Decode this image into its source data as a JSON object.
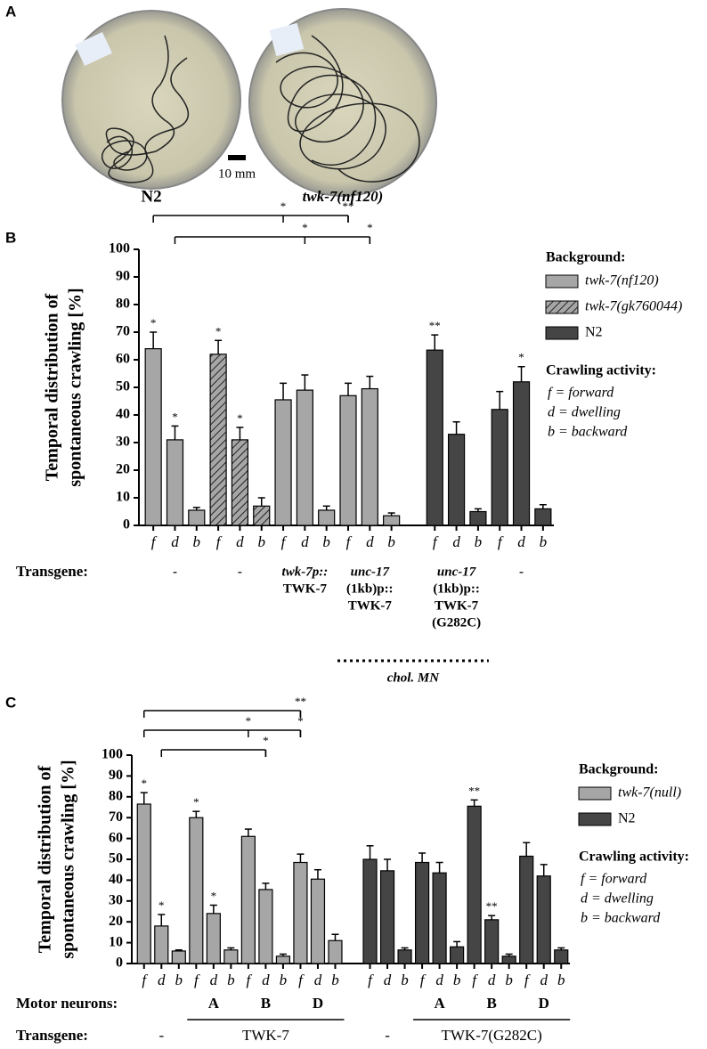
{
  "panel_a": {
    "label": "A",
    "names": [
      "N2",
      "twk-7(nf120)"
    ],
    "scale": "10 mm"
  },
  "chart_data": [
    {
      "type": "bar",
      "panel": "B",
      "ylabel": [
        "Temporal distribution of",
        "spontaneous crawling [%]"
      ],
      "ylim": [
        0,
        100
      ],
      "yticks": [
        0,
        10,
        20,
        30,
        40,
        50,
        60,
        70,
        80,
        90,
        100
      ],
      "categories": [
        "f",
        "d",
        "b",
        "f",
        "d",
        "b",
        "f",
        "d",
        "b",
        "f",
        "d",
        "b",
        null,
        "f",
        "d",
        "b",
        "f",
        "d",
        "b"
      ],
      "legend_title": "Background:",
      "series": [
        {
          "name": "twk-7(nf120)",
          "color": "#a6a6a6",
          "hatch": false,
          "italic": true,
          "values": [
            64,
            31,
            5.5,
            null,
            null,
            null,
            45.5,
            49,
            5.5,
            47,
            49.5,
            3.5,
            null,
            null,
            null,
            null,
            null,
            null,
            null
          ],
          "errors": [
            6,
            5,
            1,
            null,
            null,
            null,
            6,
            5.5,
            1.5,
            4.5,
            4.5,
            1,
            null,
            null,
            null,
            null,
            null,
            null,
            null
          ]
        },
        {
          "name": "twk-7(gk760044)",
          "color": "#a6a6a6",
          "hatch": true,
          "italic": true,
          "values": [
            null,
            null,
            null,
            62,
            31,
            7,
            null,
            null,
            null,
            null,
            null,
            null,
            null,
            null,
            null,
            null,
            null,
            null,
            null
          ],
          "errors": [
            null,
            null,
            null,
            5,
            4.5,
            3,
            null,
            null,
            null,
            null,
            null,
            null,
            null,
            null,
            null,
            null,
            null,
            null,
            null
          ]
        },
        {
          "name": "N2",
          "color": "#454545",
          "hatch": false,
          "italic": false,
          "values": [
            null,
            null,
            null,
            null,
            null,
            null,
            null,
            null,
            null,
            null,
            null,
            null,
            null,
            63.5,
            33,
            5,
            42,
            52,
            6
          ],
          "errors": [
            null,
            null,
            null,
            null,
            null,
            null,
            null,
            null,
            null,
            null,
            null,
            null,
            null,
            5.5,
            4.5,
            1,
            6.5,
            5.5,
            1.5
          ]
        }
      ],
      "stars": [
        "*",
        "*",
        null,
        "*",
        "*",
        null,
        null,
        null,
        null,
        null,
        null,
        null,
        null,
        "**",
        null,
        null,
        null,
        "*",
        null
      ],
      "brackets": [
        {
          "labels": [
            "*",
            "**"
          ]
        },
        {
          "labels": [
            "*",
            "*"
          ]
        }
      ],
      "activity_title": "Crawling activity:",
      "activity_legend": [
        "f = forward",
        "d = dwelling",
        "b = backward"
      ],
      "transgene_title": "Transgene:",
      "transgene": [
        [
          "-"
        ],
        [
          "-"
        ],
        [
          "twk-7p::",
          "TWK-7"
        ],
        [
          "unc-17",
          "(1kb)p::",
          "TWK-7"
        ],
        [
          "unc-17",
          "(1kb)p::",
          "TWK-7",
          "(G282C)"
        ],
        [
          "-"
        ]
      ],
      "group_note": "chol. MN"
    },
    {
      "type": "bar",
      "panel": "C",
      "ylabel": [
        "Temporal distribution of",
        "spontaneous crawling [%]"
      ],
      "ylim": [
        0,
        100
      ],
      "yticks": [
        0,
        10,
        20,
        30,
        40,
        50,
        60,
        70,
        80,
        90,
        100
      ],
      "categories": [
        "f",
        "d",
        "b",
        "f",
        "d",
        "b",
        "f",
        "d",
        "b",
        "f",
        "d",
        "b",
        null,
        "f",
        "d",
        "b",
        "f",
        "d",
        "b",
        "f",
        "d",
        "b",
        "f",
        "d",
        "b"
      ],
      "legend_title": "Background:",
      "series": [
        {
          "name": "twk-7(null)",
          "color": "#a6a6a6",
          "hatch": false,
          "italic": true,
          "values": [
            76.5,
            18,
            6,
            70,
            24,
            6.5,
            61,
            35.5,
            3.5,
            48.5,
            40.5,
            11,
            null,
            null,
            null,
            null,
            null,
            null,
            null,
            null,
            null,
            null,
            null,
            null,
            null
          ],
          "errors": [
            5.5,
            5.5,
            0.5,
            3,
            4,
            1,
            3.5,
            3,
            1,
            4,
            4.5,
            3,
            null,
            null,
            null,
            null,
            null,
            null,
            null,
            null,
            null,
            null,
            null,
            null,
            null
          ]
        },
        {
          "name": "N2",
          "color": "#454545",
          "hatch": false,
          "italic": false,
          "values": [
            null,
            null,
            null,
            null,
            null,
            null,
            null,
            null,
            null,
            null,
            null,
            null,
            null,
            50,
            44.5,
            6.5,
            48.5,
            43.5,
            8,
            75.5,
            21,
            3.5,
            51.5,
            42,
            6.5
          ],
          "errors": [
            null,
            null,
            null,
            null,
            null,
            null,
            null,
            null,
            null,
            null,
            null,
            null,
            null,
            6.5,
            5.5,
            1,
            4.5,
            5,
            2.5,
            3,
            2,
            1,
            6.5,
            5.5,
            1
          ]
        }
      ],
      "stars": [
        "*",
        "*",
        null,
        "*",
        "*",
        null,
        null,
        null,
        null,
        null,
        null,
        null,
        null,
        null,
        null,
        null,
        null,
        null,
        null,
        "**",
        "**",
        null,
        null,
        null,
        null
      ],
      "brackets": [
        {
          "labels": [
            "**"
          ]
        },
        {
          "labels": [
            "*",
            "*"
          ]
        },
        {
          "labels": [
            "*"
          ]
        }
      ],
      "activity_title": "Crawling activity:",
      "activity_legend": [
        "f = forward",
        "d = dwelling",
        "b = backward"
      ],
      "motor_title": "Motor neurons:",
      "motor": [
        null,
        "A",
        "B",
        "D",
        null,
        "A",
        "B",
        "D"
      ],
      "transgene_title": "Transgene:",
      "transgene": [
        "-",
        "TWK-7",
        "-",
        "TWK-7(G282C)"
      ]
    }
  ]
}
